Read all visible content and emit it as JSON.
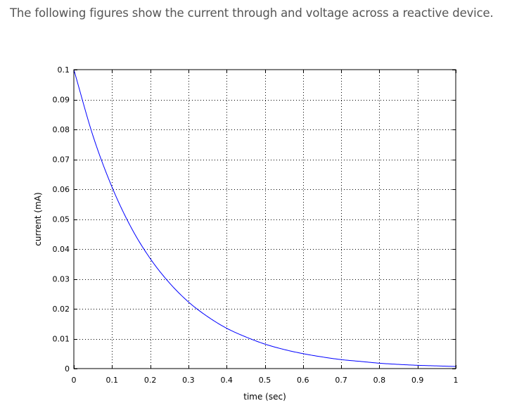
{
  "page": {
    "intro_text": "The following figures show the current through and voltage across a reactive device."
  },
  "chart_data": {
    "type": "line",
    "title": "",
    "xlabel": "time (sec)",
    "ylabel": "current (mA)",
    "xlim": [
      0,
      1
    ],
    "ylim": [
      0,
      0.1
    ],
    "x_ticks": [
      0,
      0.1,
      0.2,
      0.3,
      0.4,
      0.5,
      0.6,
      0.7,
      0.8,
      0.9,
      1
    ],
    "x_tick_labels": [
      "0",
      "0.1",
      "0.2",
      "0.3",
      "0.4",
      "0.5",
      "0.6",
      "0.7",
      "0.8",
      "0.9",
      "1"
    ],
    "y_ticks": [
      0,
      0.01,
      0.02,
      0.03,
      0.04,
      0.05,
      0.06,
      0.07,
      0.08,
      0.09,
      0.1
    ],
    "y_tick_labels": [
      "0",
      "0.01",
      "0.02",
      "0.03",
      "0.04",
      "0.05",
      "0.06",
      "0.07",
      "0.08",
      "0.09",
      "0.1"
    ],
    "grid": true,
    "grid_style": "dotted",
    "series": [
      {
        "color": "#0000ff",
        "x": [
          0,
          0.05,
          0.1,
          0.15,
          0.2,
          0.25,
          0.3,
          0.35,
          0.4,
          0.45,
          0.5,
          0.55,
          0.6,
          0.65,
          0.7,
          0.75,
          0.8,
          0.85,
          0.9,
          0.95,
          1.0
        ],
        "y": [
          0.1,
          0.0779,
          0.0607,
          0.0472,
          0.0368,
          0.0287,
          0.0223,
          0.0174,
          0.0135,
          0.0106,
          0.0082,
          0.0064,
          0.005,
          0.0039,
          0.003,
          0.0024,
          0.0018,
          0.0014,
          0.0011,
          0.0009,
          0.0007
        ]
      }
    ]
  }
}
